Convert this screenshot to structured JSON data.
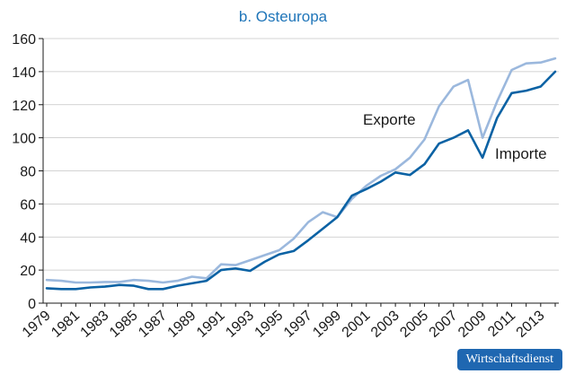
{
  "colors": {
    "title": "#1f75b9",
    "exports": "#9bb8dd",
    "imports": "#0b62a4",
    "badge": "#1f67b1",
    "axis": "#1a1a1a"
  },
  "badge": {
    "text": "Wirtschaftsdienst"
  },
  "chart_data": {
    "type": "line",
    "title": "b. Osteuropa",
    "xlabel": "",
    "ylabel": "",
    "xlim": [
      1979,
      2014
    ],
    "ylim": [
      0,
      160
    ],
    "yticks": [
      0,
      20,
      40,
      60,
      80,
      100,
      120,
      140,
      160
    ],
    "xticks": [
      "1979",
      "1981",
      "1983",
      "1985",
      "1987",
      "1989",
      "1991",
      "1993",
      "1995",
      "1997",
      "1999",
      "2001",
      "2003",
      "2005",
      "2007",
      "2009",
      "2011",
      "2013"
    ],
    "grid": "horizontal",
    "x": [
      1979,
      1980,
      1981,
      1982,
      1983,
      1984,
      1985,
      1986,
      1987,
      1988,
      1989,
      1990,
      1991,
      1992,
      1993,
      1994,
      1995,
      1996,
      1997,
      1998,
      1999,
      2000,
      2001,
      2002,
      2003,
      2004,
      2005,
      2006,
      2007,
      2008,
      2009,
      2010,
      2011,
      2012,
      2013,
      2014
    ],
    "series": [
      {
        "name": "Exporte",
        "values": [
          14,
          13.5,
          12.5,
          12.5,
          12.8,
          12.8,
          14,
          13.5,
          12.5,
          13.5,
          16,
          15,
          23.5,
          23,
          26,
          29,
          32,
          39,
          49,
          55,
          52,
          63,
          71,
          77,
          81,
          88,
          99,
          119,
          131,
          135,
          100,
          122,
          141,
          145,
          145.5,
          148
        ]
      },
      {
        "name": "Importe",
        "values": [
          9,
          8.5,
          8.5,
          9.5,
          10,
          11,
          10.5,
          8.5,
          8.5,
          10.5,
          12,
          13.5,
          20,
          21,
          19.5,
          25,
          29.5,
          31.5,
          38,
          45,
          52,
          65,
          69,
          73.5,
          79,
          77.5,
          84,
          96.5,
          100,
          104.5,
          88,
          112,
          127,
          128.5,
          131,
          140
        ]
      }
    ]
  }
}
